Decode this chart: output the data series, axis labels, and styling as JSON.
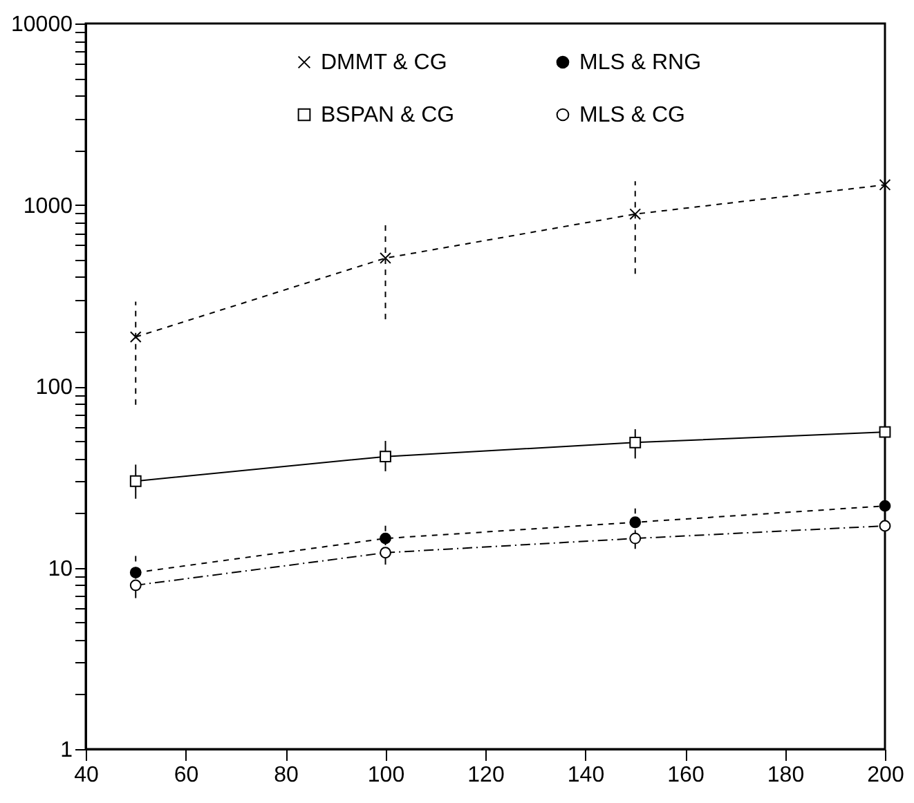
{
  "chart_data": {
    "type": "line",
    "x": [
      50,
      100,
      150,
      200
    ],
    "xlim": [
      40,
      200
    ],
    "xticks": [
      40,
      60,
      80,
      100,
      120,
      140,
      160,
      180,
      200
    ],
    "ylim": [
      1,
      10000
    ],
    "log": "y",
    "legend": "top",
    "grid": false,
    "yticks": [
      1,
      {
        "value": 2,
        "label": null
      },
      {
        "value": 3,
        "label": null
      },
      {
        "value": 4,
        "label": null
      },
      {
        "value": 5,
        "label": null
      },
      {
        "value": 6,
        "label": null
      },
      {
        "value": 7,
        "label": null
      },
      {
        "value": 8,
        "label": null
      },
      {
        "value": 9,
        "label": null
      },
      10,
      {
        "value": 20,
        "label": null
      },
      {
        "value": 30,
        "label": null
      },
      {
        "value": 40,
        "label": null
      },
      {
        "value": 50,
        "label": null
      },
      {
        "value": 60,
        "label": null
      },
      {
        "value": 70,
        "label": null
      },
      {
        "value": 80,
        "label": null
      },
      {
        "value": 90,
        "label": null
      },
      100,
      {
        "value": 200,
        "label": null
      },
      {
        "value": 300,
        "label": null
      },
      {
        "value": 400,
        "label": null
      },
      {
        "value": 500,
        "label": null
      },
      {
        "value": 600,
        "label": null
      },
      {
        "value": 700,
        "label": null
      },
      {
        "value": 800,
        "label": null
      },
      {
        "value": 900,
        "label": null
      },
      1000,
      {
        "value": 2000,
        "label": null
      },
      {
        "value": 3000,
        "label": null
      },
      {
        "value": 4000,
        "label": null
      },
      {
        "value": 5000,
        "label": null
      },
      {
        "value": 6000,
        "label": null
      },
      {
        "value": 7000,
        "label": null
      },
      {
        "value": 8000,
        "label": null
      },
      {
        "value": 9000,
        "label": null
      },
      10000
    ],
    "series": [
      {
        "name": "DMMT & CG",
        "color": "#000000",
        "marker": "cross",
        "line_style": "dashed",
        "values": [
          187,
          509,
          890,
          1290
        ],
        "errors": [
          [
            79,
            293
          ],
          [
            234,
            782
          ],
          [
            417,
            1350
          ],
          [
            661,
            1850
          ]
        ]
      },
      {
        "name": "MLS & RNG",
        "color": "#000000",
        "marker": "circle",
        "line_style": "dashed",
        "values": [
          9.4,
          14.5,
          17.8,
          21.9
        ],
        "errors": [
          [
            9.4,
            11.9
          ],
          [
            12,
            17.6
          ],
          [
            15,
            21.2
          ],
          [
            18,
            26.5
          ]
        ]
      },
      {
        "name": "BSPAN & CG",
        "color": "#000000",
        "marker": "square",
        "line_style": "solid",
        "values": [
          30,
          41,
          49,
          56
        ],
        "errors": [
          [
            24,
            37
          ],
          [
            34,
            50
          ],
          [
            40,
            58
          ],
          [
            47,
            66
          ]
        ]
      },
      {
        "name": "MLS & CG",
        "color": "#000000",
        "marker": "circle",
        "line_style": "dotted",
        "values": [
          8,
          12.1,
          14.5,
          17
        ],
        "errors": [
          [
            6.8,
            9.3
          ],
          [
            10.4,
            13.8
          ],
          [
            12.7,
            16.3
          ],
          [
            15,
            19
          ]
        ]
      }
    ]
  }
}
